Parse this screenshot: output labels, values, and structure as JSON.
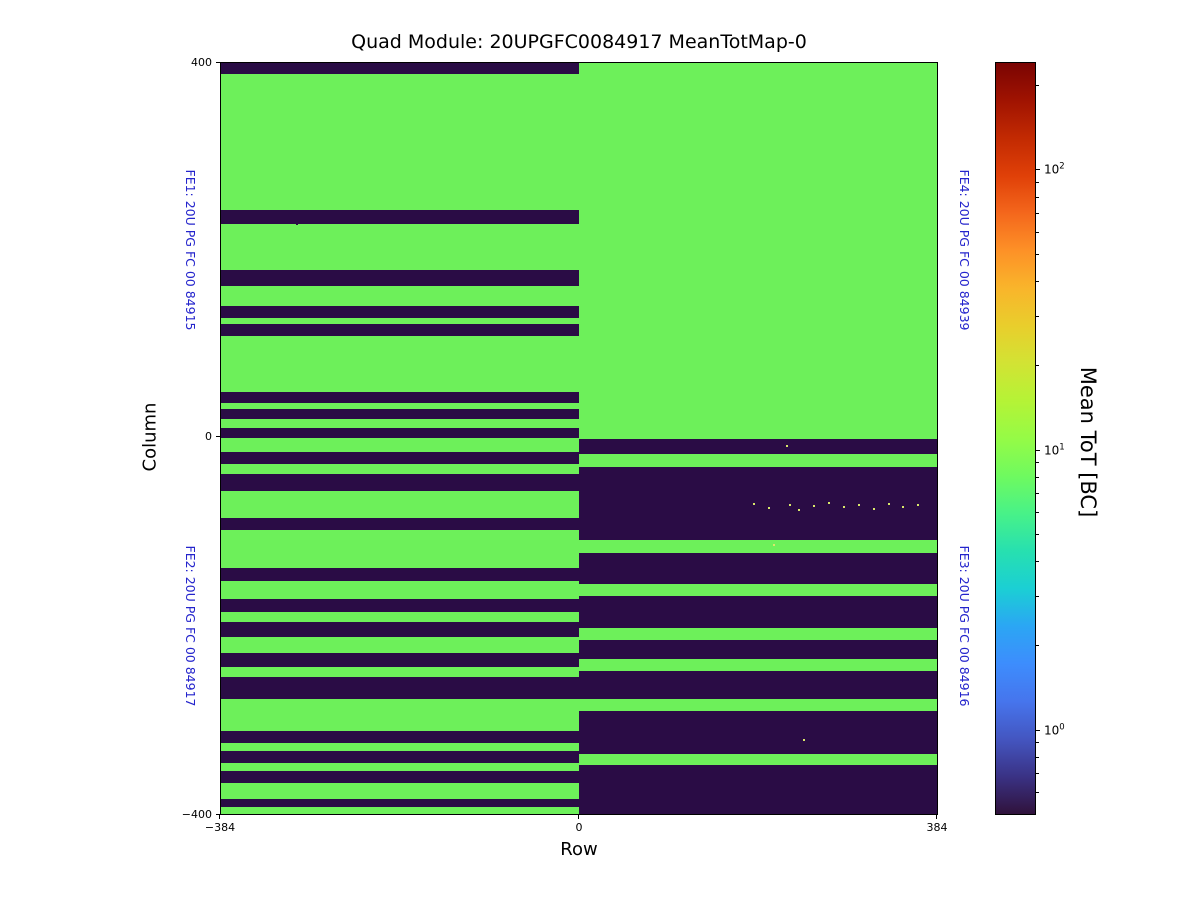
{
  "chart_data": {
    "type": "heatmap",
    "title": "Quad Module: 20UPGFC0084917 MeanTotMap-0",
    "xlabel": "Row",
    "ylabel": "Column",
    "xlim": [
      -384,
      384
    ],
    "ylim": [
      -400,
      400
    ],
    "x_tick_labels": [
      "−384",
      "0",
      "384"
    ],
    "y_tick_labels": [
      "400",
      "0",
      "−400"
    ],
    "grid": false,
    "colors": {
      "active": "#6df05a",
      "dead": "#2a0c45",
      "speckle": "#d8e86a",
      "fe_label": "#2424cc",
      "axis": "#000000"
    },
    "colorbar": {
      "label": "Mean ToT [BC]",
      "scale": "log",
      "vmin": 0.5,
      "vmax": 240,
      "major_ticks": [
        {
          "base": "10",
          "exp": "2",
          "value": 100
        },
        {
          "base": "10",
          "exp": "1",
          "value": 10
        },
        {
          "base": "10",
          "exp": "0",
          "value": 1
        }
      ],
      "gradient_stops_bottom_to_top": [
        "#30123b",
        "#3a3285",
        "#4456c1",
        "#4675ed",
        "#3d8dfd",
        "#2ba6f4",
        "#1bcfd4",
        "#27e0b0",
        "#48f288",
        "#6ffa5f",
        "#95fb46",
        "#b5f336",
        "#d2e334",
        "#e9ce2c",
        "#f9b52b",
        "#fd9127",
        "#f4671c",
        "#e04008",
        "#c22a02",
        "#a01301",
        "#7a0403"
      ]
    },
    "quadrants": [
      {
        "id": "FE1",
        "label": "FE1: 20U PG FC 00 84915",
        "x_range": [
          -384,
          0
        ],
        "y_range": [
          0,
          400
        ],
        "base": "active",
        "stripe_color": "dead",
        "stripes": [
          [
            388,
            400
          ],
          [
            229,
            243
          ],
          [
            162,
            179
          ],
          [
            128,
            141
          ],
          [
            109,
            122
          ],
          [
            38,
            50
          ],
          [
            21,
            31
          ],
          [
            0,
            11
          ]
        ]
      },
      {
        "id": "FE4",
        "label": "FE4: 20U PG FC 00 84939",
        "x_range": [
          0,
          384
        ],
        "y_range": [
          0,
          400
        ],
        "base": "active",
        "stripe_color": "dead",
        "stripes": []
      },
      {
        "id": "FE2",
        "label": "FE2: 20U PG FC 00 84917",
        "x_range": [
          -384,
          0
        ],
        "y_range": [
          -400,
          0
        ],
        "base": "active",
        "stripe_color": "dead",
        "stripes": [
          [
            -27,
            -14
          ],
          [
            -56,
            -38
          ],
          [
            -98,
            -85
          ],
          [
            -152,
            -138
          ],
          [
            -185,
            -171
          ],
          [
            -211,
            -196
          ],
          [
            -243,
            -228
          ],
          [
            -278,
            -254
          ],
          [
            -324,
            -312
          ],
          [
            -346,
            -333
          ],
          [
            -367,
            -354
          ],
          [
            -393,
            -384
          ]
        ]
      },
      {
        "id": "FE3",
        "label": "FE3: 20U PG FC 00 84916",
        "x_range": [
          0,
          384
        ],
        "y_range": [
          -400,
          0
        ],
        "base": "dead",
        "stripe_color": "active",
        "stripes": [
          [
            -30,
            -16
          ],
          [
            -122,
            -108
          ],
          [
            -168,
            -155
          ],
          [
            -215,
            -202
          ],
          [
            -248,
            -235
          ],
          [
            -290,
            -278
          ],
          [
            -348,
            -336
          ]
        ]
      }
    ],
    "speckles": [
      {
        "row": 188,
        "col": -70,
        "color": "speckle"
      },
      {
        "row": 204,
        "col": -74,
        "color": "speckle"
      },
      {
        "row": 226,
        "col": -71,
        "color": "speckle"
      },
      {
        "row": 236,
        "col": -76,
        "color": "speckle"
      },
      {
        "row": 252,
        "col": -72,
        "color": "speckle"
      },
      {
        "row": 268,
        "col": -69,
        "color": "speckle"
      },
      {
        "row": 284,
        "col": -73,
        "color": "speckle"
      },
      {
        "row": 300,
        "col": -71,
        "color": "speckle"
      },
      {
        "row": 316,
        "col": -75,
        "color": "speckle"
      },
      {
        "row": 332,
        "col": -70,
        "color": "speckle"
      },
      {
        "row": 348,
        "col": -73,
        "color": "speckle"
      },
      {
        "row": 364,
        "col": -71,
        "color": "speckle"
      },
      {
        "row": 223,
        "col": -8,
        "color": "speckle"
      },
      {
        "row": 209,
        "col": -113,
        "color": "speckle"
      },
      {
        "row": 241,
        "col": -321,
        "color": "speckle"
      },
      {
        "row": -302,
        "col": 229,
        "color": "dead"
      },
      {
        "row": 35,
        "col": -134,
        "color": "dead"
      }
    ]
  }
}
